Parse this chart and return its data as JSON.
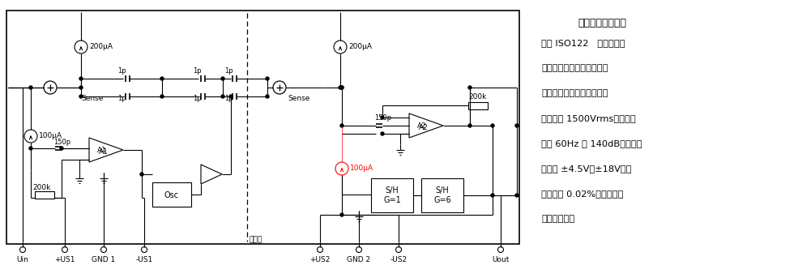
{
  "bg_color": "#ffffff",
  "line_color": "#000000",
  "fig_w": 9.85,
  "fig_h": 3.43,
  "dpi": 100,
  "description_lines": [
    "精密低成本隔离放",
    "大器 ISO122   它是采用滞",
    "回调制解调技术设计的低成",
    "本精密隔离放大器。隔离电",
    "压额定值 1500Vrms；隔离抑",
    "制比 60Hz 时 140dB；电源电",
    "压范围 ±4.5V～±18V；非",
    "线性最大 0.02%；固定的单",
    "位增益组态。"
  ],
  "title_line": "精密低成本隔离放大器",
  "bottom_labels": [
    "Uin",
    "+US1",
    "GND 1",
    "-US1",
    "+US2",
    "GND 2",
    "-US2",
    "Uout"
  ],
  "bottom_x": [
    28,
    80,
    128,
    178,
    395,
    443,
    492,
    618
  ],
  "isolation_label": "隔离层"
}
